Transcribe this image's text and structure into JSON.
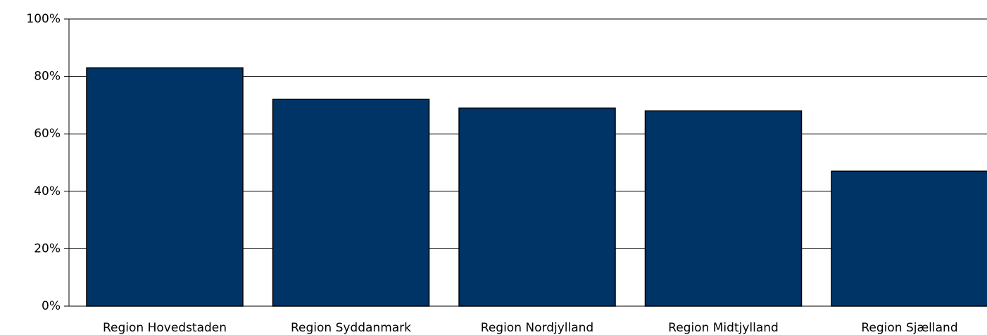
{
  "chart_data": {
    "type": "bar",
    "categories": [
      "Region Hovedstaden",
      "Region Syddanmark",
      "Region Nordjylland",
      "Region Midtjylland",
      "Region Sjælland"
    ],
    "values": [
      83,
      72,
      69,
      68,
      47
    ],
    "color": "#003366",
    "ylim": [
      0,
      100
    ],
    "yticks": [
      {
        "value": 0,
        "label": "0%"
      },
      {
        "value": 20,
        "label": "20%"
      },
      {
        "value": 40,
        "label": "40%"
      },
      {
        "value": 60,
        "label": "60%"
      },
      {
        "value": 80,
        "label": "80%"
      },
      {
        "value": 100,
        "label": "100%"
      }
    ],
    "grid": true
  }
}
